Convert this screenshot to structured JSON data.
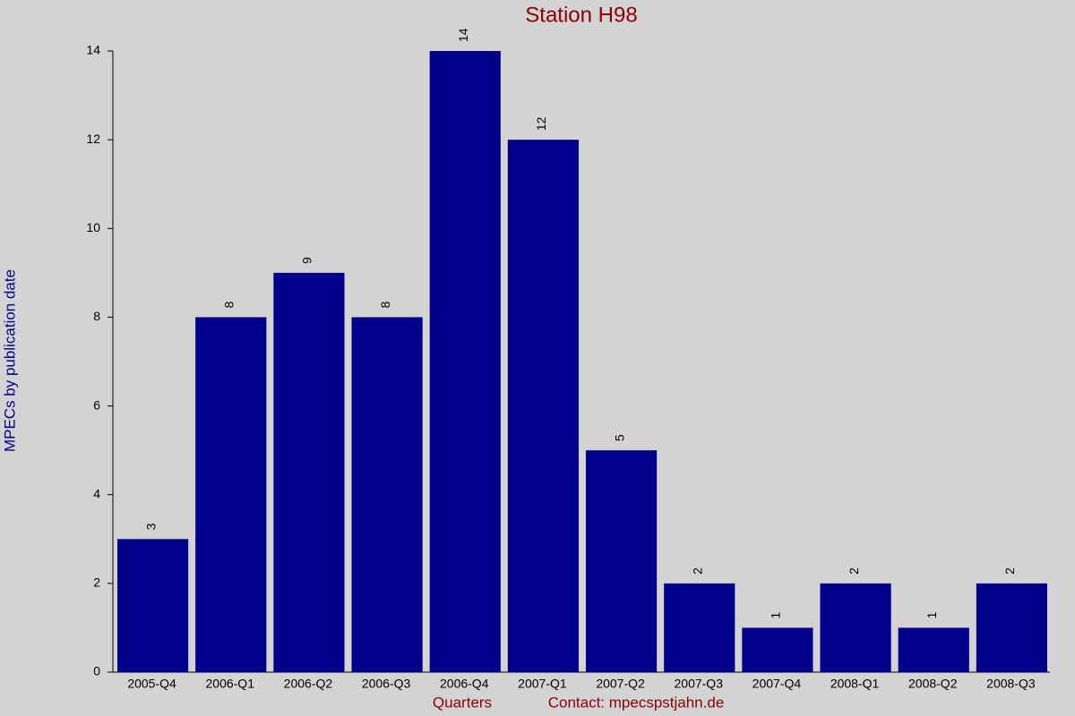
{
  "chart_data": {
    "type": "bar",
    "title": "Station H98",
    "x_label": "Quarters",
    "note": "Contact: mpecspstjahn.de",
    "y_label": "MPECs by publication date",
    "categories": [
      "2005-Q4",
      "2006-Q1",
      "2006-Q2",
      "2006-Q3",
      "2006-Q4",
      "2007-Q1",
      "2007-Q2",
      "2007-Q3",
      "2007-Q4",
      "2008-Q1",
      "2008-Q2",
      "2008-Q3"
    ],
    "values": [
      3,
      8,
      9,
      8,
      14,
      12,
      5,
      2,
      1,
      2,
      1,
      2
    ],
    "color": "#00008b",
    "ylim": [
      0,
      14
    ],
    "yticks": [
      0,
      2,
      4,
      6,
      8,
      10,
      12,
      14
    ],
    "grid": false
  }
}
